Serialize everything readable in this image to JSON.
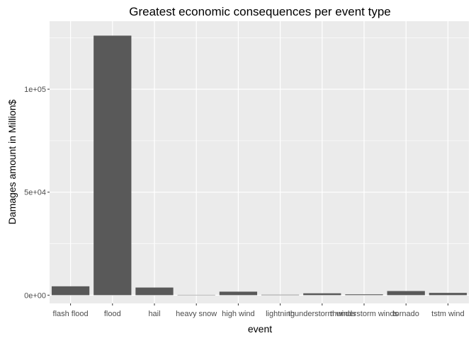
{
  "chart_data": {
    "type": "bar",
    "title": "Greatest economic consequences per event type",
    "xlabel": "event",
    "ylabel": "Damages amount in Million$",
    "categories": [
      "flash flood",
      "flood",
      "hail",
      "heavy snow",
      "high wind",
      "lightning",
      "thunderstorm winds",
      "thunderstorm winds",
      "tornado",
      "tstm wind"
    ],
    "values": [
      4300,
      126000,
      3700,
      150,
      1700,
      200,
      900,
      400,
      2000,
      1100
    ],
    "ylim": [
      -4000,
      133000
    ],
    "yticks": [
      0,
      50000,
      100000
    ],
    "ytick_labels": [
      "0e+00",
      "5e+04",
      "1e+05"
    ],
    "grid": true,
    "colors": {
      "panel": "#EBEBEB",
      "grid_major": "#FFFFFF",
      "bar": "#595959",
      "text": "#000000",
      "tick_text": "#4D4D4D",
      "tick": "#333333"
    }
  }
}
